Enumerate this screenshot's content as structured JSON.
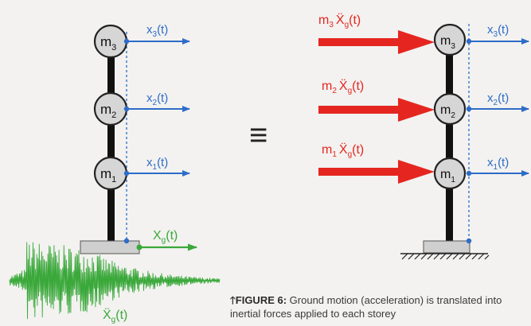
{
  "left_model": {
    "masses": [
      {
        "mass": "m",
        "index": "3",
        "disp": "x",
        "disp_index": "3",
        "arg": "(t)"
      },
      {
        "mass": "m",
        "index": "2",
        "disp": "x",
        "disp_index": "2",
        "arg": "(t)"
      },
      {
        "mass": "m",
        "index": "1",
        "disp": "x",
        "disp_index": "1",
        "arg": "(t)"
      }
    ],
    "ground_disp": {
      "sym": "X",
      "sub": "g",
      "arg": "(t)"
    },
    "ground_accel": {
      "sym": "Ẍ",
      "sub": "g",
      "arg": "(t)"
    }
  },
  "equals_symbol": "≡",
  "right_model": {
    "masses": [
      {
        "mass": "m",
        "index": "3",
        "disp": "x",
        "disp_index": "3",
        "arg": "(t)",
        "force": {
          "m": "m",
          "mi": "3",
          "sym": "Ẍ",
          "sub": "g",
          "arg": "(t)"
        }
      },
      {
        "mass": "m",
        "index": "2",
        "disp": "x",
        "disp_index": "2",
        "arg": "(t)",
        "force": {
          "m": "m",
          "mi": "2",
          "sym": "Ẍ",
          "sub": "g",
          "arg": "(t)"
        }
      },
      {
        "mass": "m",
        "index": "1",
        "disp": "x",
        "disp_index": "1",
        "arg": "(t)",
        "force": {
          "m": "m",
          "mi": "1",
          "sym": "Ẍ",
          "sub": "g",
          "arg": "(t)"
        }
      }
    ]
  },
  "caption": {
    "arrow": "🡑",
    "lead": "FIGURE 6:",
    "text": " Ground motion (acceleration) is translated into inertial forces applied to each storey"
  },
  "colors": {
    "blue": "#2e6cc7",
    "green": "#3aa83a",
    "red": "#e52620",
    "mass_fill": "#d6d6d6",
    "column": "#111111",
    "base": "#cfcfcf"
  }
}
